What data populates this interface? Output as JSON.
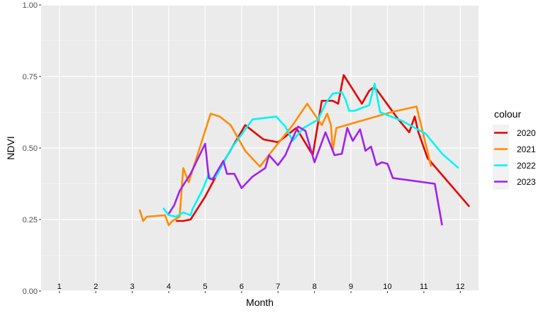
{
  "chart_data": {
    "type": "line",
    "xlabel": "Month",
    "ylabel": "NDVI",
    "ylim": [
      0,
      1
    ],
    "y_ticks": [
      "0.00",
      "0.25",
      "0.50",
      "0.75",
      "1.00"
    ],
    "y_tick_values": [
      0,
      0.25,
      0.5,
      0.75,
      1.0
    ],
    "xlim": [
      0.5,
      12.5
    ],
    "month_labels": [
      "1",
      "2",
      "3",
      "4",
      "5",
      "6",
      "7",
      "8",
      "9",
      "10",
      "11",
      "12"
    ],
    "legend_title": "colour",
    "legend_position": "right",
    "grid": true,
    "series": [
      {
        "name": "2020",
        "color": "#e60000",
        "x": [
          4.2,
          4.4,
          4.6,
          5.0,
          5.5,
          6.1,
          6.6,
          7.0,
          7.5,
          7.95,
          8.2,
          8.5,
          8.65,
          8.8,
          9.3,
          9.5,
          9.6,
          9.7,
          10.3,
          10.6,
          10.75,
          10.85,
          11.1,
          12.25
        ],
        "y": [
          0.245,
          0.245,
          0.25,
          0.33,
          0.45,
          0.58,
          0.53,
          0.52,
          0.57,
          0.475,
          0.665,
          0.665,
          0.655,
          0.755,
          0.655,
          0.7,
          0.71,
          0.705,
          0.6,
          0.555,
          0.61,
          0.555,
          0.465,
          0.295
        ]
      },
      {
        "name": "2021",
        "color": "#ff8c00",
        "x": [
          3.2,
          3.3,
          3.4,
          3.9,
          4.0,
          4.1,
          4.3,
          4.4,
          4.55,
          5.15,
          5.4,
          5.7,
          6.1,
          6.5,
          6.9,
          7.4,
          7.8,
          8.2,
          8.35,
          8.45,
          8.5,
          8.6,
          10.1,
          10.8,
          11.2
        ],
        "y": [
          0.285,
          0.245,
          0.26,
          0.265,
          0.23,
          0.245,
          0.26,
          0.43,
          0.38,
          0.62,
          0.61,
          0.58,
          0.49,
          0.435,
          0.5,
          0.58,
          0.655,
          0.58,
          0.62,
          0.58,
          0.49,
          0.57,
          0.625,
          0.645,
          0.435
        ]
      },
      {
        "name": "2022",
        "color": "#00f5f5",
        "x": [
          3.85,
          4.0,
          4.2,
          4.4,
          4.6,
          4.65,
          4.95,
          5.1,
          5.15,
          5.3,
          5.7,
          6.3,
          6.95,
          7.2,
          7.4,
          7.7,
          8.1,
          8.3,
          8.5,
          8.75,
          8.85,
          8.95,
          9.1,
          9.5,
          9.65,
          9.8,
          10.4,
          11.05,
          11.5,
          11.95
        ],
        "y": [
          0.29,
          0.265,
          0.26,
          0.275,
          0.265,
          0.285,
          0.36,
          0.41,
          0.39,
          0.4,
          0.495,
          0.6,
          0.61,
          0.575,
          0.525,
          0.57,
          0.6,
          0.655,
          0.69,
          0.695,
          0.67,
          0.63,
          0.63,
          0.65,
          0.725,
          0.625,
          0.595,
          0.55,
          0.48,
          0.43
        ]
      },
      {
        "name": "2023",
        "color": "#a020f0",
        "x": [
          4.0,
          4.15,
          4.3,
          4.6,
          5.0,
          5.1,
          5.2,
          5.5,
          5.6,
          5.8,
          6.0,
          6.3,
          6.65,
          6.75,
          7.0,
          7.2,
          7.35,
          7.55,
          7.75,
          8.0,
          8.3,
          8.55,
          8.75,
          8.9,
          9.05,
          9.25,
          9.4,
          9.55,
          9.7,
          9.85,
          10.0,
          10.15,
          11.3,
          11.5
        ],
        "y": [
          0.27,
          0.3,
          0.35,
          0.41,
          0.515,
          0.395,
          0.39,
          0.455,
          0.41,
          0.41,
          0.36,
          0.4,
          0.43,
          0.475,
          0.44,
          0.475,
          0.52,
          0.575,
          0.56,
          0.45,
          0.555,
          0.475,
          0.48,
          0.57,
          0.525,
          0.565,
          0.49,
          0.505,
          0.44,
          0.45,
          0.445,
          0.395,
          0.375,
          0.23
        ]
      }
    ]
  }
}
